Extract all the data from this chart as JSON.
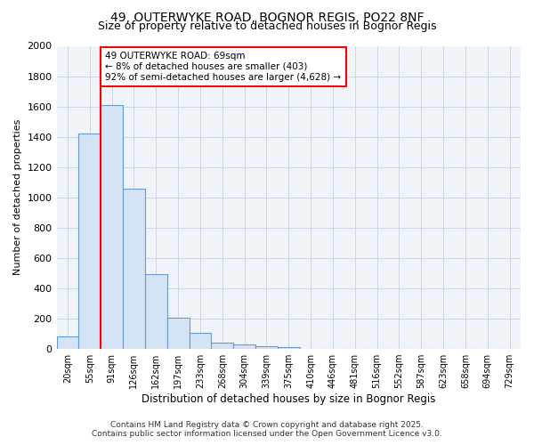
{
  "title1": "49, OUTERWYKE ROAD, BOGNOR REGIS, PO22 8NF",
  "title2": "Size of property relative to detached houses in Bognor Regis",
  "xlabel": "Distribution of detached houses by size in Bognor Regis",
  "ylabel": "Number of detached properties",
  "categories": [
    "20sqm",
    "55sqm",
    "91sqm",
    "126sqm",
    "162sqm",
    "197sqm",
    "233sqm",
    "268sqm",
    "304sqm",
    "339sqm",
    "375sqm",
    "410sqm",
    "446sqm",
    "481sqm",
    "516sqm",
    "552sqm",
    "587sqm",
    "623sqm",
    "658sqm",
    "694sqm",
    "729sqm"
  ],
  "values": [
    80,
    1420,
    1610,
    1055,
    495,
    205,
    105,
    40,
    30,
    20,
    15,
    0,
    0,
    0,
    0,
    0,
    0,
    0,
    0,
    0,
    0
  ],
  "bar_color": "#d4e4f4",
  "bar_edge_color": "#6699cc",
  "red_line_index": 1.5,
  "annotation_text": "49 OUTERWYKE ROAD: 69sqm\n← 8% of detached houses are smaller (403)\n92% of semi-detached houses are larger (4,628) →",
  "annotation_box_color": "white",
  "annotation_box_edge": "red",
  "footer1": "Contains HM Land Registry data © Crown copyright and database right 2025.",
  "footer2": "Contains public sector information licensed under the Open Government Licence v3.0.",
  "ylim": [
    0,
    2000
  ],
  "yticks": [
    0,
    200,
    400,
    600,
    800,
    1000,
    1200,
    1400,
    1600,
    1800,
    2000
  ],
  "background_color": "#ffffff",
  "plot_bg_color": "#f0f4f8",
  "grid_color": "#c8d8e8",
  "title_fontsize": 10,
  "subtitle_fontsize": 9
}
